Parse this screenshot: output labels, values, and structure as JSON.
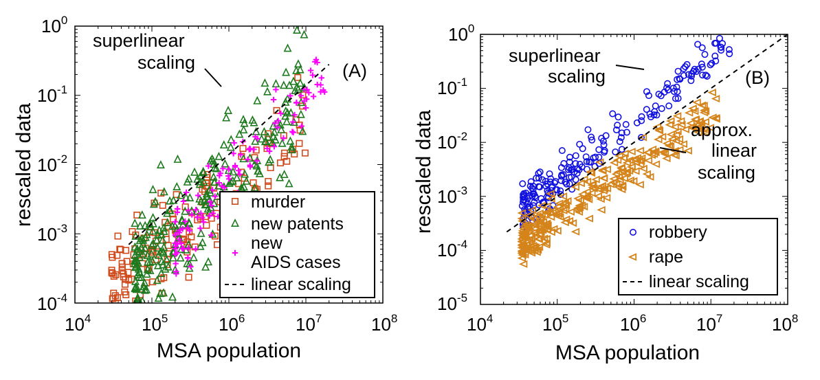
{
  "chart_data": [
    {
      "type": "scatter",
      "panel_label": "(A)",
      "xlabel": "MSA population",
      "ylabel": "rescaled data",
      "xscale": "log",
      "yscale": "log",
      "xlim": [
        10000,
        100000000
      ],
      "ylim": [
        0.0001,
        1
      ],
      "x_ticks": [
        {
          "base": "10",
          "exp": "4"
        },
        {
          "base": "10",
          "exp": "5"
        },
        {
          "base": "10",
          "exp": "6"
        },
        {
          "base": "10",
          "exp": "7"
        },
        {
          "base": "10",
          "exp": "8"
        }
      ],
      "y_ticks": [
        {
          "base": "10",
          "exp": "-4"
        },
        {
          "base": "10",
          "exp": "-3"
        },
        {
          "base": "10",
          "exp": "-2"
        },
        {
          "base": "10",
          "exp": "-1"
        },
        {
          "base": "10",
          "exp": "0"
        }
      ],
      "annotation": {
        "lines": [
          "superlinear",
          "scaling"
        ]
      },
      "legend": {
        "location": "bottom-right",
        "entries": [
          {
            "label": "murder",
            "marker": "square",
            "color": "#d04a1c"
          },
          {
            "label": "new patents",
            "marker": "triangle-up",
            "color": "#1e7a1e"
          },
          {
            "label": "new",
            "label_line2": "AIDS cases",
            "marker": "plus",
            "color": "#ff00ff"
          },
          {
            "label": "linear scaling",
            "marker": "dashed-line",
            "color": "#000000"
          }
        ]
      },
      "reference_line": {
        "name": "linear scaling",
        "style": "dashed",
        "x": [
          50000,
          20000000
        ],
        "y": [
          0.0007,
          0.28
        ]
      },
      "series": [
        {
          "name": "murder",
          "color": "#d04a1c",
          "marker": "square",
          "n_points": 170,
          "approx_trend": {
            "log_intercept": -2.4,
            "log_slope": 0.95,
            "x_range": [
              30000,
              10000000
            ],
            "scatter_dex": 0.35
          }
        },
        {
          "name": "new patents",
          "color": "#1e7a1e",
          "marker": "triangle-up",
          "n_points": 280,
          "approx_trend": {
            "log_intercept": -2.1,
            "log_slope": 1.25,
            "x_range": [
              60000,
              10000000
            ],
            "scatter_dex": 0.45
          }
        },
        {
          "name": "new AIDS cases",
          "color": "#ff00ff",
          "marker": "plus",
          "n_points": 120,
          "approx_trend": {
            "log_intercept": -2.3,
            "log_slope": 1.3,
            "x_range": [
              200000,
              20000000
            ],
            "scatter_dex": 0.25
          }
        }
      ]
    },
    {
      "type": "scatter",
      "panel_label": "(B)",
      "xlabel": "MSA population",
      "ylabel": "rescaled data",
      "xscale": "log",
      "yscale": "log",
      "xlim": [
        10000,
        100000000
      ],
      "ylim": [
        1e-05,
        1
      ],
      "x_ticks": [
        {
          "base": "10",
          "exp": "4"
        },
        {
          "base": "10",
          "exp": "5"
        },
        {
          "base": "10",
          "exp": "6"
        },
        {
          "base": "10",
          "exp": "7"
        },
        {
          "base": "10",
          "exp": "8"
        }
      ],
      "y_ticks": [
        {
          "base": "10",
          "exp": "-5"
        },
        {
          "base": "10",
          "exp": "-4"
        },
        {
          "base": "10",
          "exp": "-3"
        },
        {
          "base": "10",
          "exp": "-2"
        },
        {
          "base": "10",
          "exp": "-1"
        },
        {
          "base": "10",
          "exp": "0"
        }
      ],
      "annotation_superlinear": {
        "lines": [
          "superlinear",
          "scaling"
        ]
      },
      "annotation_linear": {
        "lines": [
          "approx.",
          "linear",
          "scaling"
        ]
      },
      "legend": {
        "location": "bottom-right",
        "entries": [
          {
            "label": "robbery",
            "marker": "circle",
            "color": "#1010e0"
          },
          {
            "label": "rape",
            "marker": "triangle-left",
            "color": "#d4841a"
          },
          {
            "label": "linear scaling",
            "marker": "dashed-line",
            "color": "#000000"
          }
        ]
      },
      "reference_line": {
        "name": "linear scaling",
        "style": "dashed",
        "x": [
          22000,
          100000000
        ],
        "y": [
          0.00022,
          1
        ]
      },
      "series": [
        {
          "name": "robbery",
          "color": "#1010e0",
          "marker": "circle",
          "n_points": 210,
          "approx_trend": {
            "log_intercept": -1.55,
            "log_slope": 1.18,
            "x_range": [
              35000,
              18000000
            ],
            "scatter_dex": 0.2
          }
        },
        {
          "name": "rape",
          "color": "#d4841a",
          "marker": "triangle-left",
          "n_points": 300,
          "approx_trend": {
            "log_intercept": -2.4,
            "log_slope": 0.97,
            "x_range": [
              35000,
              12000000
            ],
            "scatter_dex": 0.22
          }
        }
      ]
    }
  ]
}
